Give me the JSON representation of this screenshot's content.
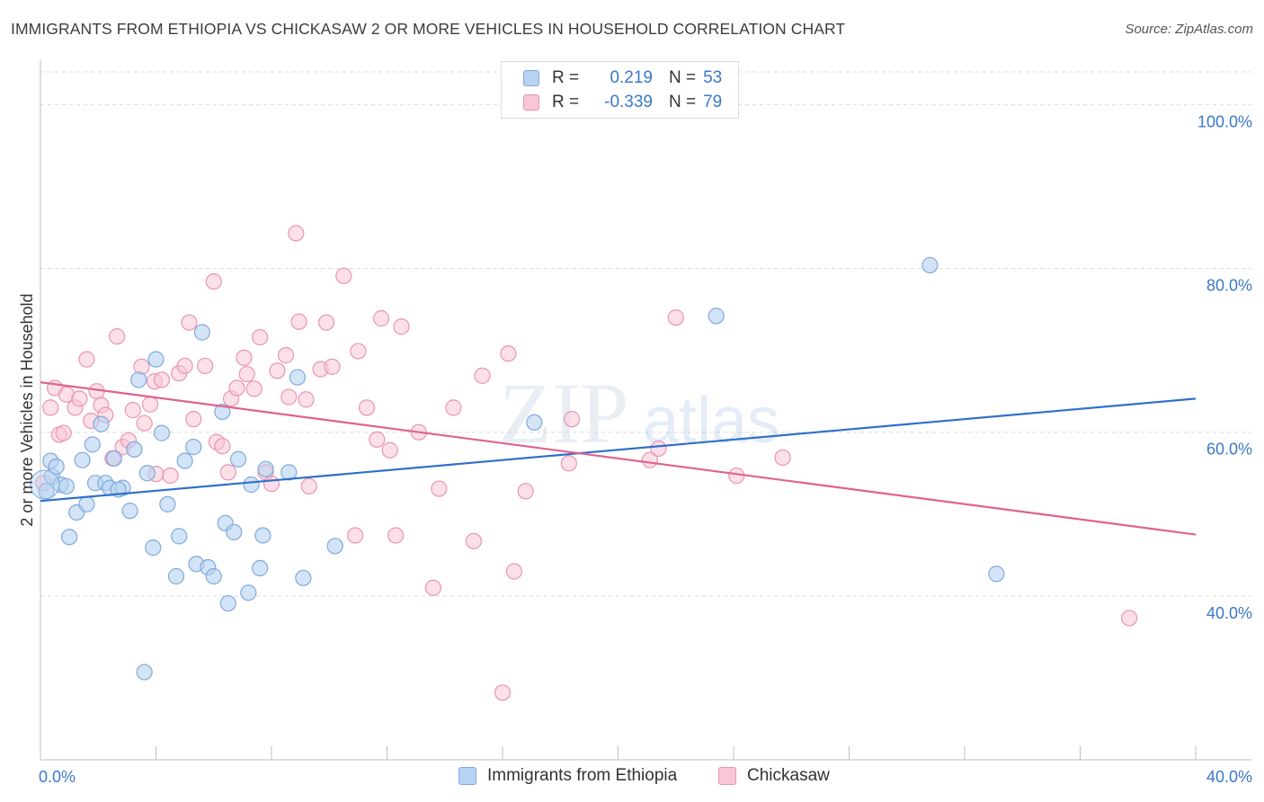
{
  "title": "IMMIGRANTS FROM ETHIOPIA VS CHICKASAW 2 OR MORE VEHICLES IN HOUSEHOLD CORRELATION CHART",
  "source": "Source: ZipAtlas.com",
  "watermark": {
    "zip": "ZIP",
    "atlas": "atlas"
  },
  "colors": {
    "blue_fill": "#b8d2f2",
    "blue_stroke": "#7fa9dc",
    "blue_line": "#2f6fcb",
    "pink_fill": "#f8c7d6",
    "pink_stroke": "#ea94b0",
    "pink_line": "#e0628e",
    "tick_text": "#3a78c9",
    "grid": "#d9d9d9"
  },
  "legend": {
    "rows": [
      {
        "r_label": "R =",
        "r_value": "0.219",
        "n_label": "N =",
        "n_value": "53"
      },
      {
        "r_label": "R =",
        "r_value": "-0.339",
        "n_label": "N =",
        "n_value": "79"
      }
    ]
  },
  "bottom_legend": {
    "series1": "Immigrants from Ethiopia",
    "series2": "Chickasaw"
  },
  "chart_data": {
    "type": "scatter",
    "title": "IMMIGRANTS FROM ETHIOPIA VS CHICKASAW 2 OR MORE VEHICLES IN HOUSEHOLD CORRELATION CHART",
    "xlabel": "",
    "ylabel": "2 or more Vehicles in Household",
    "xlim": [
      0,
      40
    ],
    "ylim": [
      20,
      104
    ],
    "x_tick_labels": [
      "0.0%",
      "40.0%"
    ],
    "y_ticks": [
      40,
      60,
      80,
      100
    ],
    "y_tick_labels": [
      "40.0%",
      "60.0%",
      "80.0%",
      "100.0%"
    ],
    "grid": true,
    "legend_position": "top-center",
    "series": [
      {
        "name": "Immigrants from Ethiopia",
        "r": 0.219,
        "n": 53,
        "trend": {
          "x": [
            0,
            40
          ],
          "y": [
            51.6,
            64.1
          ]
        },
        "points": [
          [
            0.2,
            52.8
          ],
          [
            0.35,
            56.5
          ],
          [
            0.4,
            54.6
          ],
          [
            0.55,
            55.8
          ],
          [
            0.7,
            53.6
          ],
          [
            0.9,
            53.4
          ],
          [
            1.0,
            47.2
          ],
          [
            1.25,
            50.2
          ],
          [
            1.45,
            56.6
          ],
          [
            1.6,
            51.2
          ],
          [
            1.8,
            58.5
          ],
          [
            1.9,
            53.8
          ],
          [
            2.1,
            61.0
          ],
          [
            2.25,
            53.8
          ],
          [
            2.4,
            53.2
          ],
          [
            2.55,
            56.8
          ],
          [
            2.85,
            53.2
          ],
          [
            3.1,
            50.4
          ],
          [
            3.25,
            57.9
          ],
          [
            3.4,
            66.4
          ],
          [
            3.7,
            55.0
          ],
          [
            3.9,
            45.9
          ],
          [
            4.0,
            68.9
          ],
          [
            4.2,
            59.9
          ],
          [
            4.4,
            51.2
          ],
          [
            4.7,
            42.4
          ],
          [
            4.8,
            47.3
          ],
          [
            5.0,
            56.5
          ],
          [
            5.3,
            58.2
          ],
          [
            5.4,
            43.9
          ],
          [
            5.6,
            72.2
          ],
          [
            5.8,
            43.5
          ],
          [
            6.0,
            42.4
          ],
          [
            6.3,
            62.5
          ],
          [
            6.4,
            48.9
          ],
          [
            6.5,
            39.1
          ],
          [
            6.7,
            47.8
          ],
          [
            6.85,
            56.7
          ],
          [
            7.2,
            40.4
          ],
          [
            7.3,
            53.6
          ],
          [
            7.6,
            43.4
          ],
          [
            7.7,
            47.4
          ],
          [
            7.8,
            55.5
          ],
          [
            8.6,
            55.1
          ],
          [
            8.9,
            66.7
          ],
          [
            9.1,
            42.2
          ],
          [
            10.2,
            46.1
          ],
          [
            17.1,
            61.2
          ],
          [
            23.4,
            74.2
          ],
          [
            30.8,
            80.4
          ],
          [
            33.1,
            42.7
          ],
          [
            3.6,
            30.7
          ],
          [
            2.7,
            53.0
          ]
        ]
      },
      {
        "name": "Chickasaw",
        "r": -0.339,
        "n": 79,
        "trend": {
          "x": [
            0,
            40
          ],
          "y": [
            66.1,
            47.5
          ]
        },
        "points": [
          [
            0.1,
            53.8
          ],
          [
            0.35,
            63.0
          ],
          [
            0.5,
            65.4
          ],
          [
            0.65,
            59.7
          ],
          [
            0.8,
            59.9
          ],
          [
            0.9,
            64.6
          ],
          [
            1.2,
            63.0
          ],
          [
            1.35,
            64.1
          ],
          [
            1.6,
            68.9
          ],
          [
            1.75,
            61.4
          ],
          [
            1.95,
            65.0
          ],
          [
            2.1,
            63.3
          ],
          [
            2.25,
            62.1
          ],
          [
            2.5,
            56.8
          ],
          [
            2.65,
            71.7
          ],
          [
            2.85,
            58.2
          ],
          [
            3.05,
            59.0
          ],
          [
            3.2,
            62.7
          ],
          [
            3.5,
            68.0
          ],
          [
            3.6,
            61.1
          ],
          [
            3.8,
            63.4
          ],
          [
            3.95,
            66.2
          ],
          [
            4.0,
            54.9
          ],
          [
            4.2,
            66.4
          ],
          [
            4.5,
            54.7
          ],
          [
            4.8,
            67.2
          ],
          [
            5.0,
            68.1
          ],
          [
            5.15,
            73.4
          ],
          [
            5.3,
            61.6
          ],
          [
            5.7,
            68.1
          ],
          [
            6.0,
            78.4
          ],
          [
            6.1,
            58.8
          ],
          [
            6.3,
            58.3
          ],
          [
            6.5,
            55.1
          ],
          [
            6.6,
            64.1
          ],
          [
            6.8,
            65.4
          ],
          [
            7.05,
            69.1
          ],
          [
            7.15,
            67.1
          ],
          [
            7.4,
            65.3
          ],
          [
            7.6,
            71.6
          ],
          [
            7.8,
            55.1
          ],
          [
            8.0,
            53.7
          ],
          [
            8.2,
            67.5
          ],
          [
            8.5,
            69.4
          ],
          [
            8.6,
            64.3
          ],
          [
            8.85,
            84.3
          ],
          [
            8.95,
            73.5
          ],
          [
            9.2,
            64.0
          ],
          [
            9.3,
            53.4
          ],
          [
            9.7,
            67.7
          ],
          [
            9.9,
            73.4
          ],
          [
            10.1,
            68.0
          ],
          [
            10.5,
            79.1
          ],
          [
            10.9,
            47.4
          ],
          [
            11.0,
            69.9
          ],
          [
            11.3,
            63.0
          ],
          [
            11.65,
            59.1
          ],
          [
            11.8,
            73.9
          ],
          [
            12.1,
            57.8
          ],
          [
            12.3,
            47.4
          ],
          [
            12.5,
            72.9
          ],
          [
            13.1,
            60.0
          ],
          [
            13.6,
            41.0
          ],
          [
            13.8,
            53.1
          ],
          [
            14.3,
            63.0
          ],
          [
            15.0,
            46.7
          ],
          [
            15.3,
            66.9
          ],
          [
            16.0,
            28.2
          ],
          [
            16.2,
            69.6
          ],
          [
            16.4,
            43.0
          ],
          [
            16.8,
            52.8
          ],
          [
            18.3,
            56.2
          ],
          [
            18.4,
            61.6
          ],
          [
            21.1,
            56.6
          ],
          [
            21.4,
            58.0
          ],
          [
            22.0,
            74.0
          ],
          [
            24.1,
            54.7
          ],
          [
            25.7,
            56.9
          ],
          [
            37.7,
            37.3
          ]
        ]
      }
    ]
  }
}
